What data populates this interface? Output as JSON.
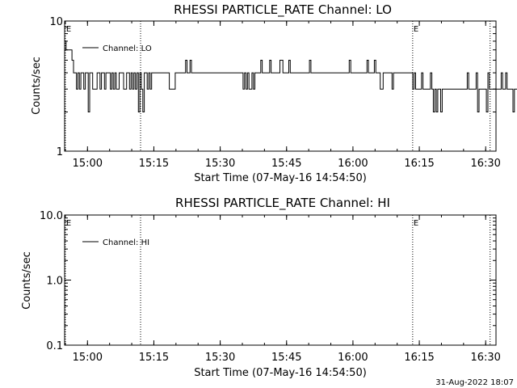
{
  "footer_date": "31-Aug-2022 18:07",
  "chart_data": [
    {
      "type": "line",
      "title": "RHESSI PARTICLE_RATE Channel: LO",
      "xlabel": "Start Time (07-May-16 14:54:50)",
      "ylabel": "Counts/sec",
      "yscale": "log",
      "xlim": [
        0,
        5850
      ],
      "ylim": [
        1,
        10
      ],
      "x_ticks": [
        {
          "t": 310,
          "label": "15:00"
        },
        {
          "t": 1210,
          "label": "15:15"
        },
        {
          "t": 2110,
          "label": "15:30"
        },
        {
          "t": 3010,
          "label": "15:45"
        },
        {
          "t": 3910,
          "label": "16:00"
        },
        {
          "t": 4810,
          "label": "16:15"
        },
        {
          "t": 5710,
          "label": "16:30"
        }
      ],
      "y_ticks": [
        {
          "v": 1,
          "label": "1"
        },
        {
          "v": 10,
          "label": "10"
        }
      ],
      "event_lines": [
        {
          "t": 10,
          "label": "E"
        },
        {
          "t": 1030,
          "label": ""
        },
        {
          "t": 4720,
          "label": "E"
        },
        {
          "t": 5770,
          "label": ""
        }
      ],
      "legend": {
        "position": "top-left",
        "label": "Channel: LO"
      },
      "series": [
        {
          "name": "Channel: LO",
          "dt": 20,
          "values": [
            7,
            6,
            6,
            6,
            6,
            5,
            4,
            4,
            3,
            4,
            3,
            4,
            4,
            3,
            4,
            4,
            2,
            4,
            4,
            3,
            3,
            3,
            4,
            4,
            3,
            4,
            4,
            3,
            4,
            4,
            4,
            3,
            4,
            3,
            4,
            3,
            3,
            4,
            4,
            4,
            3,
            3,
            4,
            4,
            3,
            4,
            3,
            4,
            3,
            4,
            2,
            4,
            3,
            2,
            4,
            4,
            3,
            4,
            3,
            4,
            4,
            4,
            4,
            4,
            4,
            4,
            4,
            4,
            4,
            4,
            4,
            3,
            3,
            3,
            3,
            4,
            4,
            4,
            4,
            4,
            4,
            4,
            5,
            4,
            4,
            5,
            4,
            4,
            4,
            4,
            4,
            4,
            4,
            4,
            4,
            4,
            4,
            4,
            4,
            4,
            4,
            4,
            4,
            4,
            4,
            4,
            4,
            4,
            4,
            4,
            4,
            4,
            4,
            4,
            4,
            4,
            4,
            4,
            4,
            4,
            4,
            3,
            4,
            3,
            4,
            3,
            3,
            4,
            3,
            4,
            4,
            4,
            4,
            5,
            4,
            4,
            4,
            4,
            4,
            5,
            4,
            4,
            4,
            4,
            4,
            4,
            5,
            5,
            4,
            4,
            4,
            4,
            5,
            4,
            4,
            4,
            4,
            4,
            4,
            4,
            4,
            4,
            4,
            4,
            4,
            4,
            5,
            4,
            4,
            4,
            4,
            4,
            4,
            4,
            4,
            4,
            4,
            4,
            4,
            4,
            4,
            4,
            4,
            4,
            4,
            4,
            4,
            4,
            4,
            4,
            4,
            4,
            4,
            5,
            4,
            4,
            4,
            4,
            4,
            4,
            4,
            4,
            4,
            4,
            4,
            5,
            4,
            4,
            4,
            4,
            5,
            4,
            4,
            4,
            3,
            3,
            4,
            4,
            4,
            4,
            4,
            4,
            3,
            4,
            4,
            4,
            4,
            4,
            4,
            4,
            4,
            4,
            4,
            4,
            4,
            4,
            3,
            4,
            3,
            3,
            3,
            3,
            4,
            3,
            3,
            3,
            3,
            3,
            4,
            3,
            2,
            3,
            2,
            3,
            3,
            2,
            3,
            3,
            3,
            3,
            3,
            3,
            3,
            3,
            3,
            3,
            3,
            3,
            3,
            3,
            3,
            3,
            3,
            4,
            3,
            3,
            3,
            3,
            3,
            4,
            2,
            3,
            3,
            3,
            3,
            3,
            2,
            4,
            3,
            3,
            3,
            3,
            3,
            3,
            3,
            3,
            4,
            3,
            3,
            4,
            3,
            3,
            3,
            3,
            2,
            3,
            3,
            4
          ]
        }
      ]
    },
    {
      "type": "line",
      "title": "RHESSI PARTICLE_RATE Channel: HI",
      "xlabel": "Start Time (07-May-16 14:54:50)",
      "ylabel": "Counts/sec",
      "yscale": "log",
      "xlim": [
        0,
        5850
      ],
      "ylim": [
        0.1,
        10
      ],
      "x_ticks": [
        {
          "t": 310,
          "label": "15:00"
        },
        {
          "t": 1210,
          "label": "15:15"
        },
        {
          "t": 2110,
          "label": "15:30"
        },
        {
          "t": 3010,
          "label": "15:45"
        },
        {
          "t": 3910,
          "label": "16:00"
        },
        {
          "t": 4810,
          "label": "16:15"
        },
        {
          "t": 5710,
          "label": "16:30"
        }
      ],
      "y_ticks": [
        {
          "v": 0.1,
          "label": "0.1"
        },
        {
          "v": 1,
          "label": "1.0"
        },
        {
          "v": 10,
          "label": "10.0"
        }
      ],
      "event_lines": [
        {
          "t": 10,
          "label": "E"
        },
        {
          "t": 1030,
          "label": ""
        },
        {
          "t": 4720,
          "label": "E"
        },
        {
          "t": 5770,
          "label": ""
        }
      ],
      "legend": {
        "position": "top-left",
        "label": "Channel: HI"
      },
      "series": [
        {
          "name": "Channel: HI",
          "dt": 20,
          "values": []
        }
      ]
    }
  ]
}
